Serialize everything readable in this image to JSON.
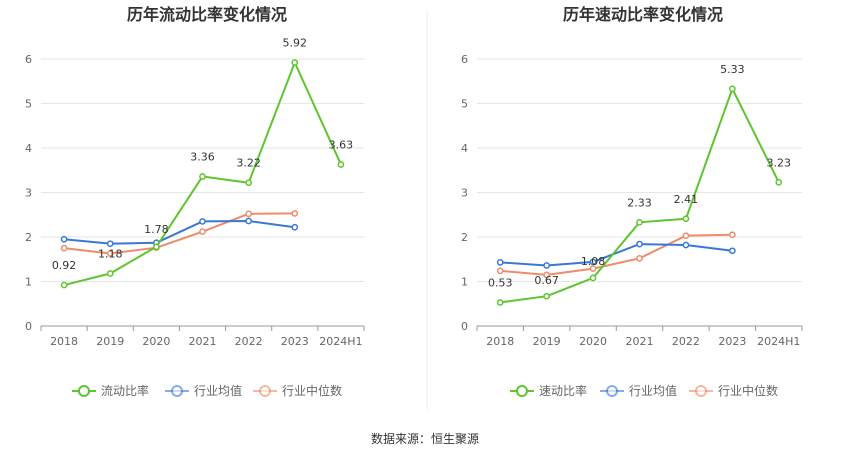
{
  "source": "数据来源：恒生聚源",
  "colors": {
    "main": "#5dc52e",
    "avg": "#3a78d6",
    "median": "#ee8b6a",
    "grid": "#e6e6e6",
    "axis": "#999999"
  },
  "chart_data": [
    {
      "type": "line",
      "title": "历年流动比率变化情况",
      "categories": [
        "2018",
        "2019",
        "2020",
        "2021",
        "2022",
        "2023",
        "2024H1"
      ],
      "ylim": [
        0,
        6
      ],
      "yticks": [
        "0",
        "1",
        "2",
        "3",
        "4",
        "5",
        "6"
      ],
      "grid": true,
      "legend": "bottom",
      "series": [
        {
          "name": "流动比率",
          "values": [
            0.92,
            1.18,
            1.78,
            3.36,
            3.22,
            5.92,
            3.63
          ],
          "labels": [
            "0.92",
            "1.18",
            "1.78",
            "3.36",
            "3.22",
            "5.92",
            "3.63"
          ]
        },
        {
          "name": "行业均值",
          "values": [
            1.95,
            1.85,
            1.87,
            2.35,
            2.36,
            2.22,
            null
          ]
        },
        {
          "name": "行业中位数",
          "values": [
            1.75,
            1.63,
            1.76,
            2.12,
            2.52,
            2.53,
            null
          ]
        }
      ]
    },
    {
      "type": "line",
      "title": "历年速动比率变化情况",
      "categories": [
        "2018",
        "2019",
        "2020",
        "2021",
        "2022",
        "2023",
        "2024H1"
      ],
      "ylim": [
        0,
        6
      ],
      "yticks": [
        "0",
        "1",
        "2",
        "3",
        "4",
        "5",
        "6"
      ],
      "grid": true,
      "legend": "bottom",
      "series": [
        {
          "name": "速动比率",
          "values": [
            0.53,
            0.67,
            1.08,
            2.33,
            2.41,
            5.33,
            3.23
          ],
          "labels": [
            "0.53",
            "0.67",
            "1.08",
            "2.33",
            "2.41",
            "5.33",
            "3.23"
          ]
        },
        {
          "name": "行业均值",
          "values": [
            1.43,
            1.36,
            1.44,
            1.84,
            1.82,
            1.69,
            null
          ]
        },
        {
          "name": "行业中位数",
          "values": [
            1.24,
            1.15,
            1.29,
            1.52,
            2.03,
            2.05,
            null
          ]
        }
      ]
    }
  ]
}
